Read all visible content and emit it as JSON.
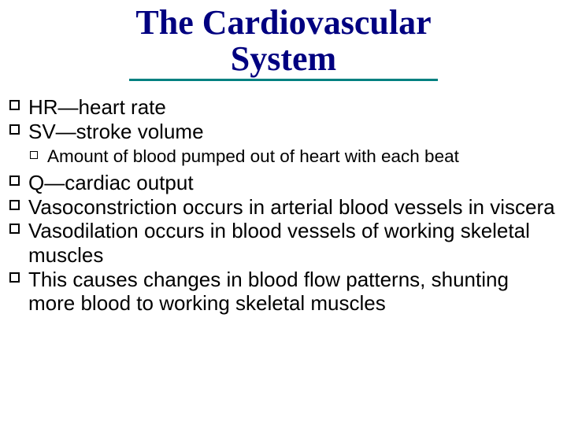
{
  "title": "The Cardiovascular\nSystem",
  "colors": {
    "title_color": "#000080",
    "underline_color": "#008080",
    "body_text": "#000000",
    "background": "#ffffff"
  },
  "typography": {
    "title_font": "Times New Roman",
    "title_fontsize_pt": 33,
    "title_weight": "bold",
    "body_font": "Arial",
    "lvl1_fontsize_pt": 20,
    "lvl2_fontsize_pt": 17
  },
  "bullets": [
    {
      "text": "HR—heart rate"
    },
    {
      "text": "SV—stroke volume",
      "children": [
        {
          "text": "Amount of blood pumped out of heart with each beat"
        }
      ]
    },
    {
      "text": "Q—cardiac output"
    },
    {
      "text": "Vasoconstriction occurs in arterial blood vessels in viscera"
    },
    {
      "text": "Vasodilation occurs in blood vessels of working skeletal muscles"
    },
    {
      "text": "This causes changes in blood flow patterns, shunting more blood to working skeletal muscles"
    }
  ]
}
